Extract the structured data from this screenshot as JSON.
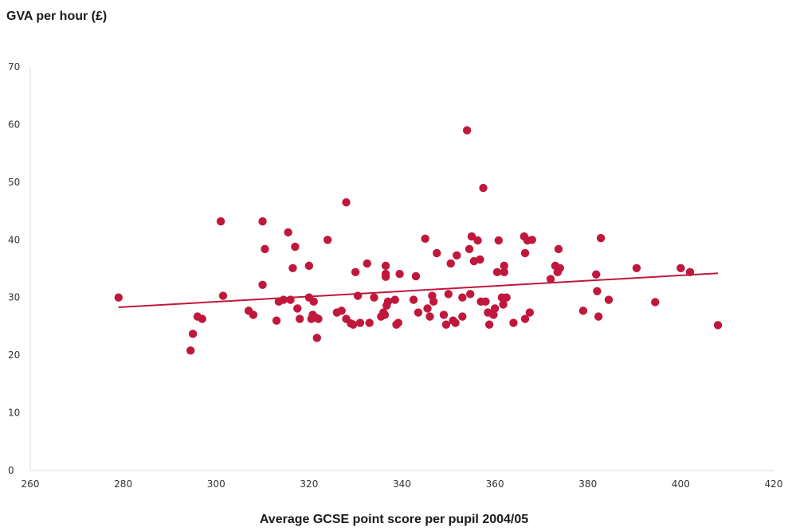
{
  "colors": {
    "point": "#c0183c",
    "trend": "#c0183c",
    "axis": "#d9d9d9"
  },
  "chart_data": {
    "type": "scatter",
    "title": "",
    "ylabel": "GVA per hour (£)",
    "xlabel": "Average GCSE point score per pupil 2004/05",
    "xlim": [
      260,
      420
    ],
    "ylim": [
      0,
      70
    ],
    "xticks": [
      "260",
      "280",
      "300",
      "320",
      "340",
      "360",
      "380",
      "400",
      "420"
    ],
    "yticks": [
      "0",
      "10",
      "20",
      "30",
      "40",
      "50",
      "60",
      "70"
    ],
    "grid": false,
    "legend": "none",
    "trendline": {
      "x": [
        279,
        408
      ],
      "y": [
        28.3,
        34.2
      ]
    },
    "points": [
      [
        279,
        30
      ],
      [
        294.5,
        20.8
      ],
      [
        295,
        23.7
      ],
      [
        296,
        26.7
      ],
      [
        297,
        26.3
      ],
      [
        301,
        43.2
      ],
      [
        301.5,
        30.3
      ],
      [
        307,
        27.7
      ],
      [
        308,
        27
      ],
      [
        310,
        43.2
      ],
      [
        310,
        32.2
      ],
      [
        310.5,
        38.4
      ],
      [
        313,
        26
      ],
      [
        313.5,
        29.3
      ],
      [
        314.5,
        29.6
      ],
      [
        315.5,
        41.3
      ],
      [
        316,
        29.6
      ],
      [
        316.5,
        35.1
      ],
      [
        317,
        38.8
      ],
      [
        317.5,
        28.1
      ],
      [
        318,
        26.3
      ],
      [
        320,
        35.5
      ],
      [
        320,
        30
      ],
      [
        320.5,
        26.3
      ],
      [
        320.8,
        27
      ],
      [
        321,
        29.3
      ],
      [
        321.5,
        26.5
      ],
      [
        321.7,
        23
      ],
      [
        322,
        26.3
      ],
      [
        324,
        40
      ],
      [
        326,
        27.4
      ],
      [
        327,
        27.7
      ],
      [
        328,
        46.5
      ],
      [
        328,
        26.3
      ],
      [
        329,
        25.5
      ],
      [
        329.5,
        25.3
      ],
      [
        330,
        34.4
      ],
      [
        330.5,
        30.3
      ],
      [
        331,
        25.6
      ],
      [
        332.5,
        35.9
      ],
      [
        333,
        25.6
      ],
      [
        334,
        30
      ],
      [
        335.5,
        26.7
      ],
      [
        336,
        27.4
      ],
      [
        336.3,
        27
      ],
      [
        336.5,
        35.5
      ],
      [
        336.5,
        34.1
      ],
      [
        336.5,
        33.6
      ],
      [
        336.7,
        28.6
      ],
      [
        337,
        29.3
      ],
      [
        338.5,
        29.6
      ],
      [
        338.8,
        25.3
      ],
      [
        339.2,
        25.6
      ],
      [
        339.5,
        34.1
      ],
      [
        342.5,
        29.6
      ],
      [
        343,
        33.7
      ],
      [
        343.5,
        27.4
      ],
      [
        345,
        40.2
      ],
      [
        345.5,
        28.1
      ],
      [
        346,
        26.7
      ],
      [
        346.5,
        30.3
      ],
      [
        346.8,
        29.3
      ],
      [
        347.5,
        37.7
      ],
      [
        349,
        27
      ],
      [
        349.5,
        25.3
      ],
      [
        350,
        30.6
      ],
      [
        350.5,
        35.9
      ],
      [
        351,
        26
      ],
      [
        351.5,
        25.6
      ],
      [
        351.8,
        37.3
      ],
      [
        353,
        30
      ],
      [
        353,
        26.7
      ],
      [
        354,
        59
      ],
      [
        354.5,
        38.4
      ],
      [
        354.7,
        30.6
      ],
      [
        355,
        40.6
      ],
      [
        355.5,
        36.3
      ],
      [
        356.3,
        39.9
      ],
      [
        356.8,
        36.6
      ],
      [
        357,
        29.3
      ],
      [
        357.5,
        49
      ],
      [
        358,
        29.3
      ],
      [
        358.5,
        27.4
      ],
      [
        358.8,
        25.3
      ],
      [
        359.7,
        27
      ],
      [
        360,
        28.1
      ],
      [
        360.5,
        34.4
      ],
      [
        360.8,
        39.9
      ],
      [
        361.5,
        30
      ],
      [
        361.8,
        28.8
      ],
      [
        362,
        35.5
      ],
      [
        362,
        34.4
      ],
      [
        362.5,
        30
      ],
      [
        364,
        25.6
      ],
      [
        366.3,
        40.6
      ],
      [
        366.5,
        37.7
      ],
      [
        366.5,
        26.3
      ],
      [
        367,
        39.9
      ],
      [
        367.5,
        27.4
      ],
      [
        368,
        40
      ],
      [
        372,
        33.2
      ],
      [
        373,
        35.5
      ],
      [
        373.5,
        34.4
      ],
      [
        373.7,
        38.4
      ],
      [
        374,
        35.1
      ],
      [
        379,
        27.7
      ],
      [
        381.8,
        34
      ],
      [
        382,
        31.1
      ],
      [
        382.3,
        26.7
      ],
      [
        382.8,
        40.3
      ],
      [
        384.5,
        29.6
      ],
      [
        390.5,
        35.1
      ],
      [
        394.5,
        29.2
      ],
      [
        400,
        35.1
      ],
      [
        402,
        34.4
      ],
      [
        408,
        25.2
      ]
    ]
  }
}
